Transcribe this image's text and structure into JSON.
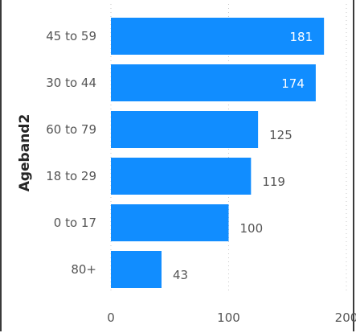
{
  "chart_data": {
    "type": "bar",
    "orientation": "horizontal",
    "ylabel": "Ageband2",
    "xlabel": "",
    "categories": [
      "45 to 59",
      "30 to 44",
      "60 to 79",
      "18 to 29",
      "0 to 17",
      "80+"
    ],
    "values": [
      181,
      174,
      125,
      119,
      100,
      43
    ],
    "xlim": [
      0,
      200
    ],
    "x_ticks": [
      0,
      100,
      200
    ],
    "grid": "vertical dotted",
    "bar_color": "#118DFF",
    "data_labels": true
  }
}
